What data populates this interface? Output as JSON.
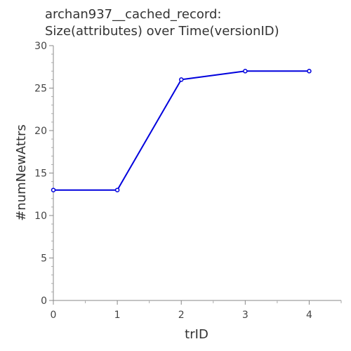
{
  "chart_data": {
    "type": "line",
    "title": "archan937__cached_record:",
    "subtitle": "Size(attributes) over Time(versionID)",
    "xlabel": "trID",
    "ylabel": "#numNewAttrs",
    "x": [
      0,
      1,
      2,
      3,
      4
    ],
    "series": [
      {
        "values": [
          13,
          13,
          26,
          27,
          27
        ],
        "color": "#0000dd"
      }
    ],
    "xlim": [
      0,
      4.5
    ],
    "ylim": [
      0,
      30
    ],
    "xticks": [
      "0",
      "1",
      "2",
      "3",
      "4"
    ],
    "yticks": [
      "0",
      "5",
      "10",
      "15",
      "20",
      "25",
      "30"
    ],
    "grid": false,
    "legend": "none"
  }
}
